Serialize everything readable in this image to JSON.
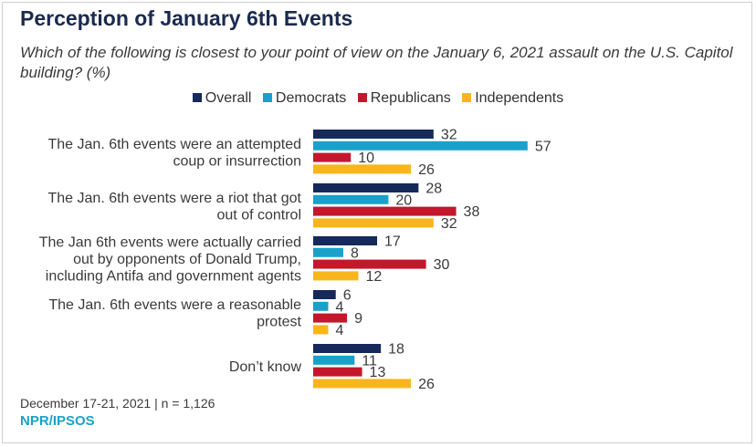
{
  "chart_data": {
    "type": "bar",
    "orientation": "horizontal",
    "title": "Perception of January 6th Events",
    "subtitle": "Which of the following is closest to your point of view on the January 6, 2021 assault on the U.S. Capitol building? (%)",
    "xlabel": "",
    "ylabel": "",
    "xlim": [
      0,
      60
    ],
    "grid": false,
    "legend_position": "top-center",
    "categories": [
      [
        "The Jan. 6th events were an attempted",
        "coup or insurrection"
      ],
      [
        "The Jan. 6th events were a riot that got",
        "out of control"
      ],
      [
        "The Jan 6th events were actually carried",
        "out by opponents of Donald Trump,",
        "including Antifa and government agents"
      ],
      [
        "The Jan. 6th events were a reasonable",
        "protest"
      ],
      [
        "Don’t know"
      ]
    ],
    "series": [
      {
        "name": "Overall",
        "color": "#152a5a",
        "values": [
          32,
          28,
          17,
          6,
          18
        ]
      },
      {
        "name": "Democrats",
        "color": "#1aa1c9",
        "values": [
          57,
          20,
          8,
          4,
          11
        ]
      },
      {
        "name": "Republicans",
        "color": "#c4172c",
        "values": [
          10,
          38,
          30,
          9,
          13
        ]
      },
      {
        "name": "Independents",
        "color": "#f9b51c",
        "values": [
          26,
          32,
          12,
          4,
          26
        ]
      }
    ]
  },
  "footer": {
    "note": "December 17-21, 2021 | n = 1,126",
    "source": "NPR/IPSOS"
  }
}
